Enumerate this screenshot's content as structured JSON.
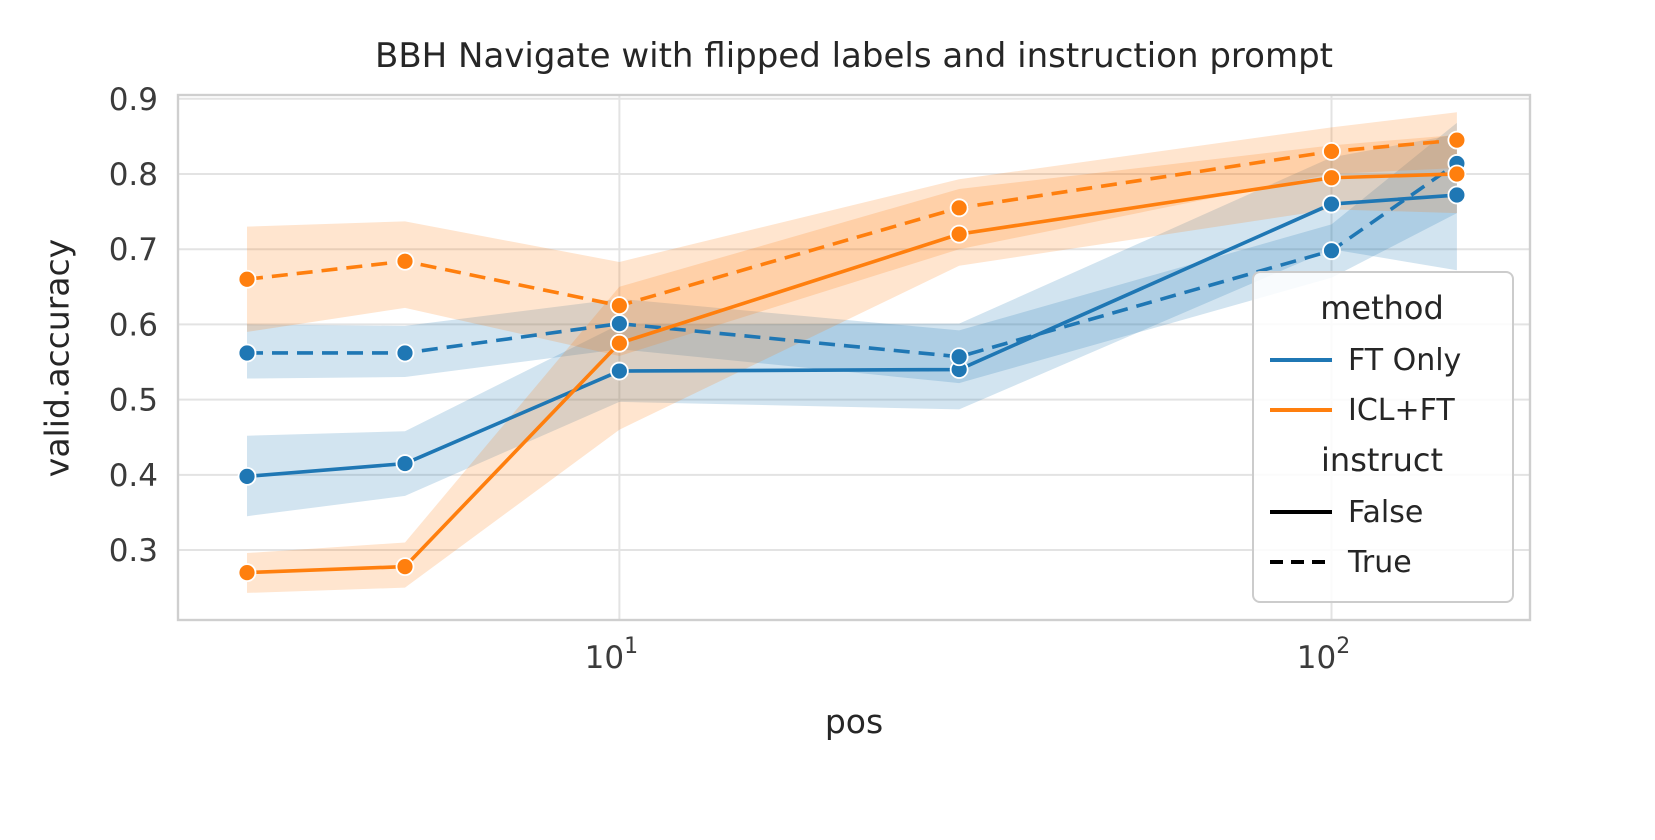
{
  "chart_data": {
    "type": "line",
    "title": "BBH Navigate with flipped labels and instruction prompt",
    "xlabel": "pos",
    "ylabel": "valid.accuracy",
    "x_scale": "log",
    "grid": true,
    "xlim": [
      2.4,
      190
    ],
    "ylim": [
      0.207,
      0.905
    ],
    "yticks": [
      0.3,
      0.4,
      0.5,
      0.6,
      0.7,
      0.8,
      0.9
    ],
    "xticks": [
      {
        "value": 10,
        "base": "10",
        "exp": "1"
      },
      {
        "value": 100,
        "base": "10",
        "exp": "2"
      }
    ],
    "x": [
      3,
      5,
      10,
      30,
      100,
      150
    ],
    "series": [
      {
        "name": "FT Only / instruct=False",
        "method": "FT Only",
        "instruct": "False",
        "color": "#1f77b4",
        "dash": false,
        "values": [
          0.398,
          0.415,
          0.538,
          0.54,
          0.76,
          0.772
        ],
        "band_lo": [
          0.345,
          0.372,
          0.497,
          0.487,
          0.7,
          0.672
        ],
        "band_hi": [
          0.452,
          0.458,
          0.6,
          0.601,
          0.822,
          0.853
        ]
      },
      {
        "name": "FT Only / instruct=True",
        "method": "FT Only",
        "instruct": "True",
        "color": "#1f77b4",
        "dash": true,
        "values": [
          0.562,
          0.562,
          0.601,
          0.557,
          0.698,
          0.814
        ],
        "band_lo": [
          0.528,
          0.53,
          0.567,
          0.522,
          0.662,
          0.748
        ],
        "band_hi": [
          0.6,
          0.598,
          0.634,
          0.592,
          0.733,
          0.868
        ]
      },
      {
        "name": "ICL+FT / instruct=False",
        "method": "ICL+FT",
        "instruct": "False",
        "color": "#ff7f0e",
        "dash": false,
        "values": [
          0.27,
          0.278,
          0.575,
          0.72,
          0.795,
          0.8
        ],
        "band_lo": [
          0.243,
          0.25,
          0.46,
          0.678,
          0.753,
          0.748
        ],
        "band_hi": [
          0.296,
          0.31,
          0.65,
          0.78,
          0.838,
          0.852
        ]
      },
      {
        "name": "ICL+FT / instruct=True",
        "method": "ICL+FT",
        "instruct": "True",
        "color": "#ff7f0e",
        "dash": true,
        "values": [
          0.66,
          0.684,
          0.625,
          0.755,
          0.83,
          0.845
        ],
        "band_lo": [
          0.59,
          0.622,
          0.558,
          0.7,
          0.8,
          0.808
        ],
        "band_hi": [
          0.73,
          0.737,
          0.683,
          0.793,
          0.862,
          0.882
        ]
      }
    ],
    "band_opacity": 0.2,
    "colors": {
      "grid": "#e3e3e3",
      "spine": "#cfcfcf",
      "tick_label": "#3b3b3b",
      "blue": "#1f77b4",
      "orange": "#ff7f0e",
      "black_line": "#000000"
    },
    "legend": {
      "method_title": "method",
      "instruct_title": "instruct",
      "methods": [
        {
          "label": "FT Only",
          "color": "#1f77b4"
        },
        {
          "label": "ICL+FT",
          "color": "#ff7f0e"
        }
      ],
      "instructs": [
        {
          "label": "False",
          "color": "#000000",
          "dash": false
        },
        {
          "label": "True",
          "color": "#000000",
          "dash": true
        }
      ]
    }
  }
}
